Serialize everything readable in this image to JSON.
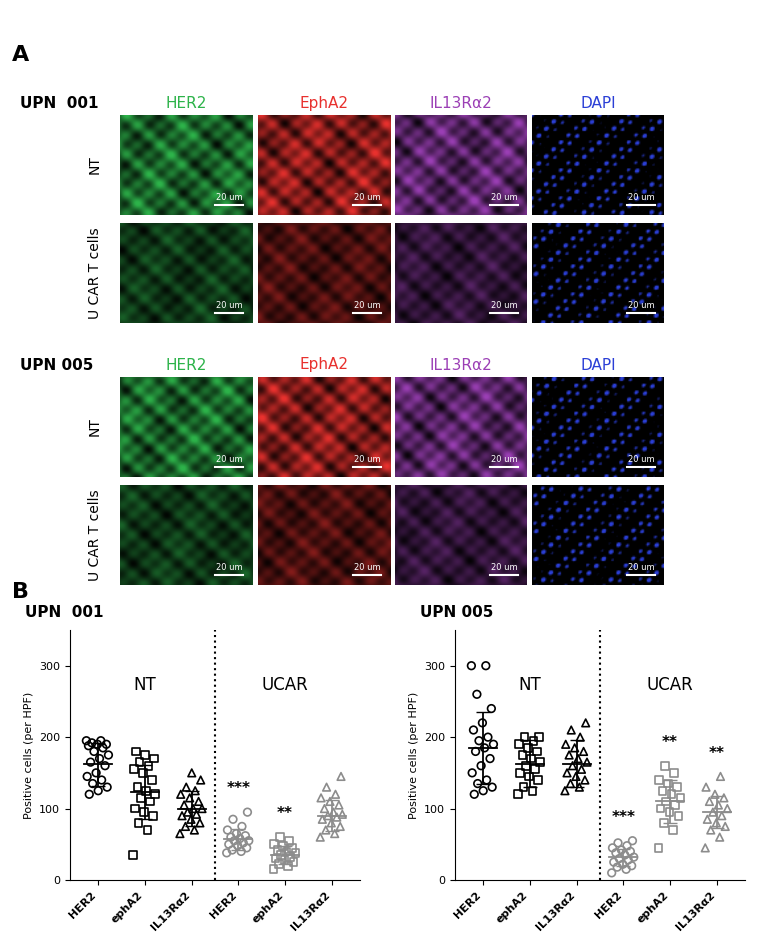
{
  "panel_a": {
    "label": "A",
    "columns": [
      {
        "name": "HER2",
        "color": "#2db34a"
      },
      {
        "name": "EphA2",
        "color": "#e8312e"
      },
      {
        "name": "IL13Rα2",
        "color": "#9b3fb5"
      },
      {
        "name": "DAPI",
        "color": "#2b3fd6"
      }
    ],
    "samples": [
      {
        "name": "UPN  001",
        "rows": [
          "NT",
          "U CAR T cells"
        ]
      },
      {
        "name": "UPN 005",
        "rows": [
          "NT",
          "U CAR T cells"
        ]
      }
    ],
    "scale_bar": "20 um"
  },
  "panel_b_label": "B",
  "chart_data": [
    {
      "type": "scatter",
      "title": "UPN  001",
      "ylabel": "Positive cells (per HPF)",
      "ylim": [
        0,
        350
      ],
      "yticks": [
        0,
        100,
        200,
        300
      ],
      "groups": [
        {
          "label": "NT",
          "color": "#000000",
          "points": [
            {
              "category": "HER2",
              "marker": "circle",
              "values": [
                195,
                195,
                192,
                190,
                190,
                188,
                185,
                180,
                175,
                170,
                165,
                160,
                150,
                145,
                140,
                135,
                130,
                125,
                120
              ],
              "mean": 162,
              "sd": 30,
              "annotation": null
            },
            {
              "category": "ephA2",
              "marker": "square",
              "values": [
                35,
                70,
                80,
                90,
                95,
                100,
                110,
                115,
                120,
                125,
                130,
                140,
                150,
                155,
                160,
                165,
                170,
                175,
                180
              ],
              "mean": 123,
              "sd": 38,
              "annotation": null
            },
            {
              "category": "IL13Rα2",
              "marker": "triangle",
              "values": [
                65,
                70,
                75,
                80,
                85,
                90,
                92,
                95,
                100,
                100,
                105,
                110,
                115,
                120,
                125,
                130,
                140,
                150
              ],
              "mean": 100,
              "sd": 25,
              "annotation": null
            }
          ]
        },
        {
          "label": "UCAR",
          "color": "#8c8c8c",
          "points": [
            {
              "category": "HER2",
              "marker": "circle",
              "values": [
                38,
                40,
                42,
                45,
                48,
                50,
                52,
                55,
                55,
                58,
                60,
                62,
                65,
                70,
                75,
                85,
                95
              ],
              "mean": 57,
              "sd": 15,
              "annotation": "***"
            },
            {
              "category": "ephA2",
              "marker": "square",
              "values": [
                15,
                20,
                22,
                25,
                28,
                30,
                32,
                35,
                38,
                40,
                42,
                45,
                48,
                50,
                55,
                60
              ],
              "mean": 35,
              "sd": 13,
              "annotation": "**"
            },
            {
              "category": "IL13Rα2",
              "marker": "triangle",
              "values": [
                60,
                65,
                70,
                75,
                80,
                85,
                88,
                90,
                92,
                95,
                100,
                105,
                110,
                115,
                120,
                130,
                145
              ],
              "mean": 90,
              "sd": 22,
              "annotation": null
            }
          ]
        }
      ]
    },
    {
      "type": "scatter",
      "title": "UPN 005",
      "ylabel": "Positive cells (per HPF)",
      "ylim": [
        0,
        350
      ],
      "yticks": [
        0,
        100,
        200,
        300
      ],
      "groups": [
        {
          "label": "NT",
          "color": "#000000",
          "points": [
            {
              "category": "HER2",
              "marker": "circle",
              "values": [
                300,
                300,
                260,
                240,
                220,
                210,
                200,
                195,
                190,
                185,
                180,
                170,
                160,
                150,
                140,
                135,
                130,
                125,
                120
              ],
              "mean": 185,
              "sd": 50,
              "annotation": null
            },
            {
              "category": "ephA2",
              "marker": "square",
              "values": [
                120,
                125,
                130,
                140,
                145,
                150,
                155,
                160,
                165,
                170,
                175,
                180,
                185,
                190,
                195,
                200,
                200
              ],
              "mean": 163,
              "sd": 33,
              "annotation": null
            },
            {
              "category": "IL13Rα2",
              "marker": "triangle",
              "values": [
                125,
                130,
                135,
                140,
                145,
                150,
                155,
                160,
                165,
                170,
                175,
                180,
                185,
                190,
                200,
                210,
                220
              ],
              "mean": 163,
              "sd": 33,
              "annotation": null
            }
          ]
        },
        {
          "label": "UCAR",
          "color": "#8c8c8c",
          "points": [
            {
              "category": "HER2",
              "marker": "circle",
              "values": [
                10,
                15,
                18,
                20,
                22,
                25,
                28,
                30,
                32,
                35,
                38,
                40,
                42,
                45,
                48,
                52,
                55
              ],
              "mean": 32,
              "sd": 12,
              "annotation": "***"
            },
            {
              "category": "ephA2",
              "marker": "square",
              "values": [
                45,
                70,
                80,
                90,
                95,
                100,
                105,
                110,
                115,
                120,
                125,
                130,
                135,
                140,
                150,
                160
              ],
              "mean": 110,
              "sd": 30,
              "annotation": "**"
            },
            {
              "category": "IL13Rα2",
              "marker": "triangle",
              "values": [
                45,
                60,
                70,
                75,
                80,
                85,
                90,
                95,
                100,
                105,
                110,
                115,
                120,
                130,
                145
              ],
              "mean": 95,
              "sd": 22,
              "annotation": "**"
            }
          ]
        }
      ]
    }
  ]
}
